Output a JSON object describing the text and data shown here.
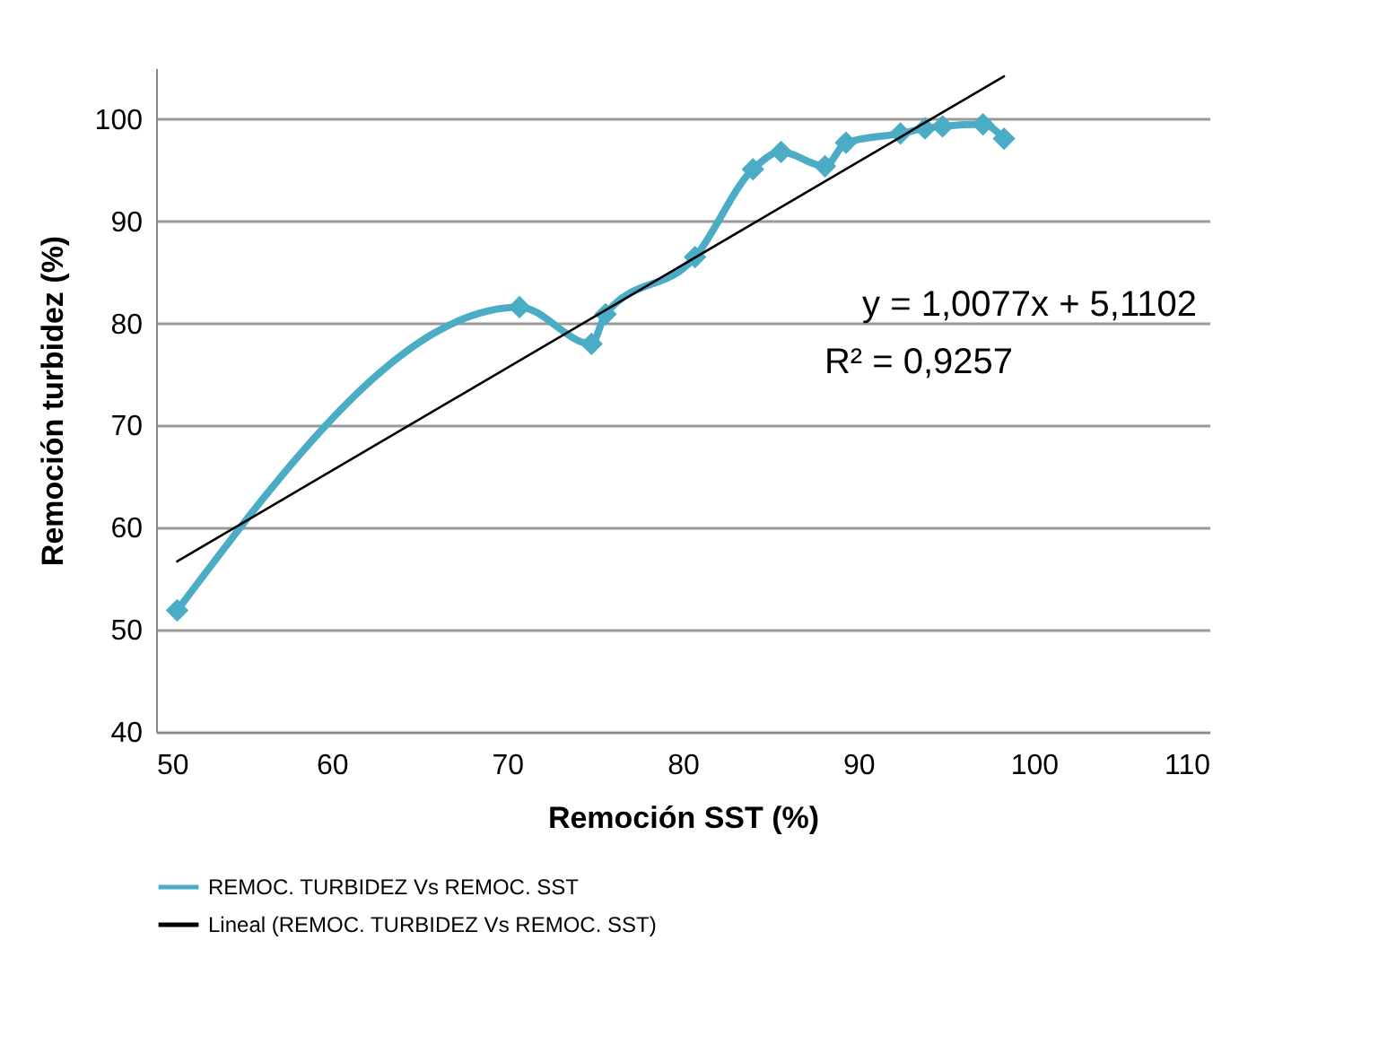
{
  "chart_data": {
    "type": "line",
    "xlabel": "Remoción SST (%)",
    "ylabel": "Remoción turbidez (%)",
    "x": [
      51.2,
      70.7,
      74.8,
      75.6,
      80.7,
      84.0,
      85.6,
      88.1,
      89.3,
      92.4,
      93.8,
      94.8,
      97.1,
      98.3
    ],
    "series": [
      {
        "name": "REMOC. TURBIDEZ Vs REMOC. SST",
        "color": "#4bacc6",
        "values": [
          51.9,
          81.6,
          78.0,
          80.9,
          86.5,
          95.1,
          96.8,
          95.4,
          97.7,
          98.6,
          99.1,
          99.3,
          99.5,
          98.1
        ],
        "marker": "diamond"
      },
      {
        "name": "Lineal (REMOC. TURBIDEZ Vs REMOC. SST)",
        "type": "line",
        "color": "#000000",
        "x": [
          51.2,
          98.3
        ],
        "values": [
          56.7,
          104.2
        ],
        "marker": "none"
      }
    ],
    "annotations": [
      "y = 1,0077x + 5,1102",
      "R² = 0,9257"
    ],
    "xlim": [
      50,
      110
    ],
    "xticks": [
      50,
      60,
      70,
      80,
      90,
      100,
      110
    ],
    "ylim": [
      40,
      105
    ],
    "yticks": [
      40,
      50,
      60,
      70,
      80,
      90,
      100
    ],
    "grid": "y",
    "legend": "bottom"
  }
}
